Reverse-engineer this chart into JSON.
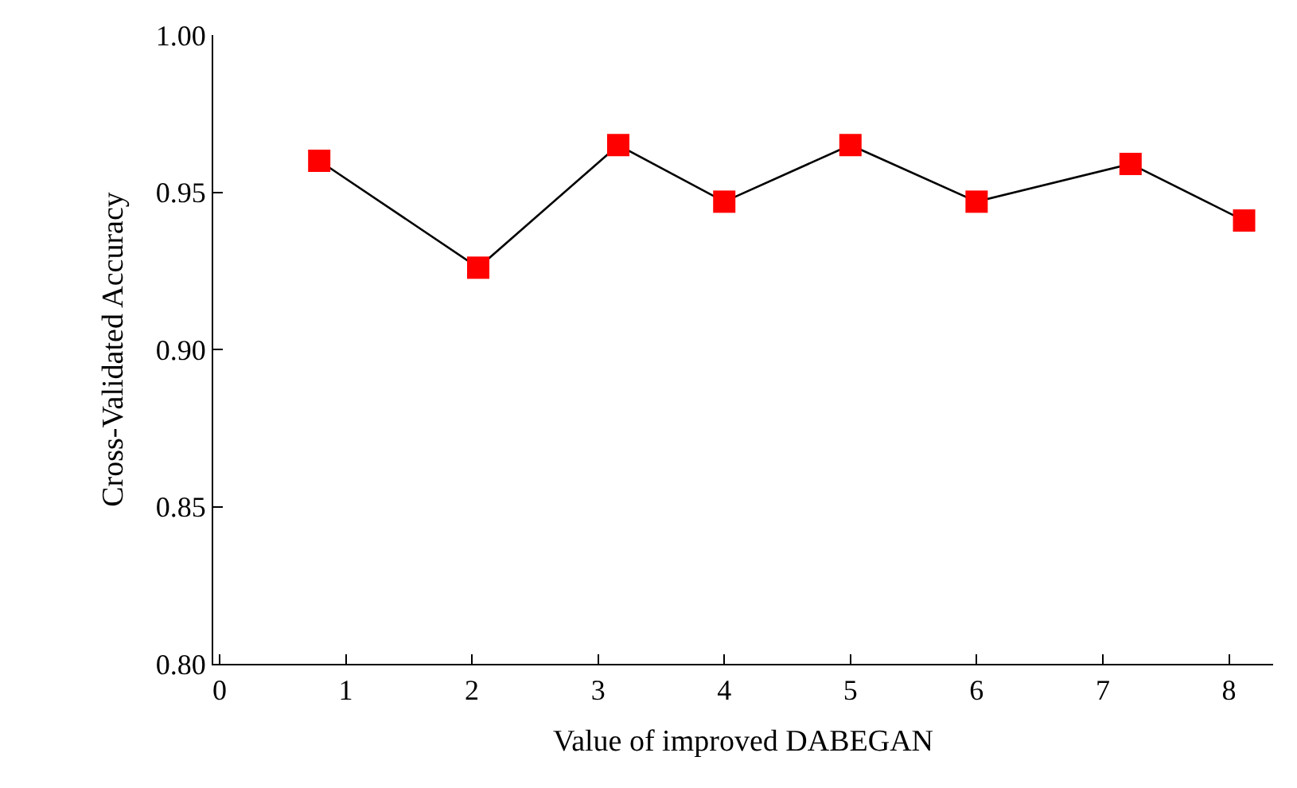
{
  "chart_data": {
    "type": "line",
    "xlabel": "Value of improved DABEGAN",
    "ylabel": "Cross-Validated Accuracy",
    "x": [
      0.79,
      2.05,
      3.16,
      4.0,
      5.0,
      6.0,
      7.22,
      8.12
    ],
    "series": [
      {
        "color": "#ff0000",
        "values": [
          0.96,
          0.926,
          0.965,
          0.947,
          0.965,
          0.947,
          0.959,
          0.941
        ]
      }
    ],
    "xlim": [
      -0.05,
      8.35
    ],
    "xticks": [
      0,
      1,
      2,
      3,
      4,
      5,
      6,
      7,
      8
    ],
    "ylim": [
      0.8,
      1.0
    ],
    "yticks": [
      {
        "value": 0.8,
        "label": "0.80"
      },
      {
        "value": 0.85,
        "label": "0.85"
      },
      {
        "value": 0.9,
        "label": "0.90"
      },
      {
        "value": 0.95,
        "label": "0.95"
      },
      {
        "value": 1.0,
        "label": "1.00"
      }
    ],
    "legend": false,
    "marker": "square",
    "line_style": "solid"
  }
}
